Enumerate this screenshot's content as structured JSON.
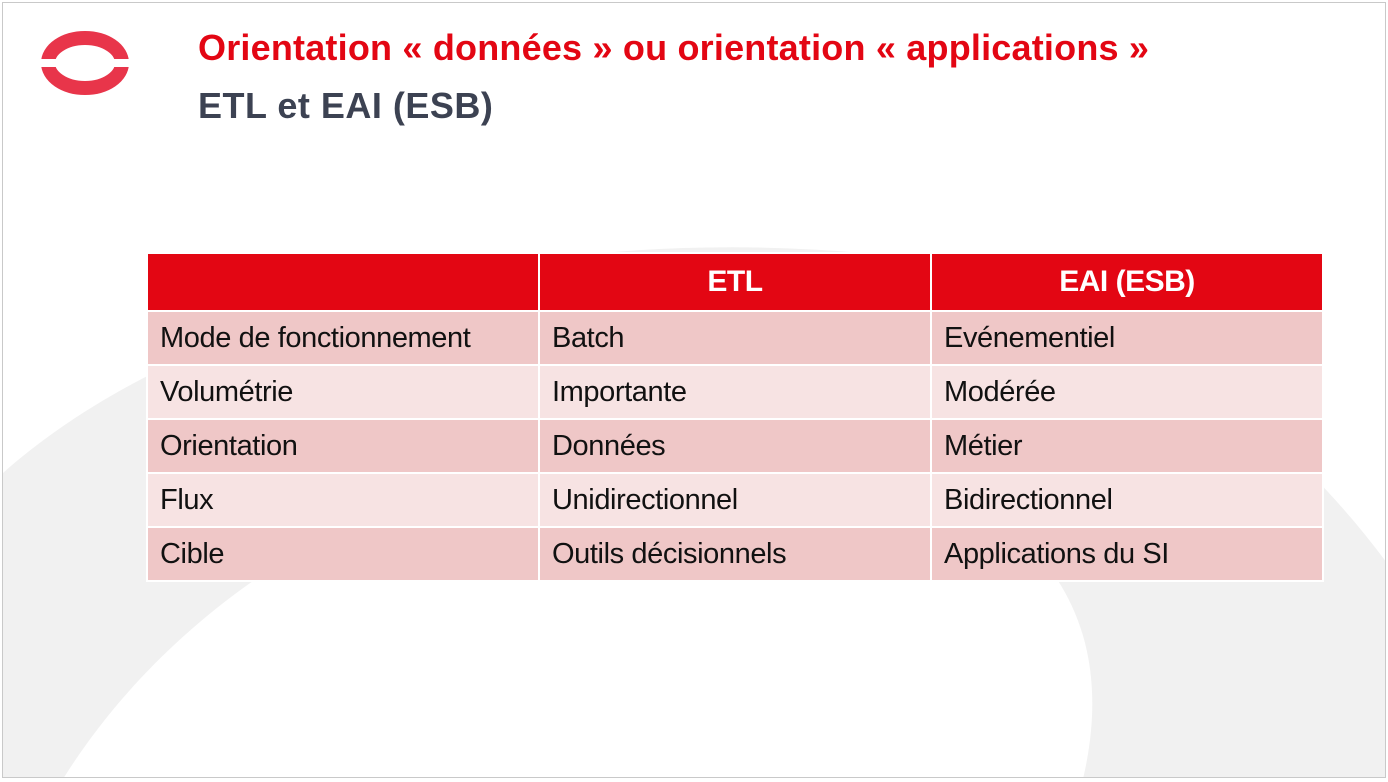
{
  "slide": {
    "title": "Orientation « données » ou orientation « applications »",
    "subtitle": "ETL et EAI (ESB)"
  },
  "table": {
    "headers": [
      "",
      "ETL",
      "EAI (ESB)"
    ],
    "rows": [
      [
        "Mode de fonctionnement",
        "Batch",
        "Evénementiel"
      ],
      [
        "Volumétrie",
        "Importante",
        "Modérée"
      ],
      [
        "Orientation",
        "Données",
        "Métier"
      ],
      [
        "Flux",
        "Unidirectionnel",
        "Bidirectionnel"
      ],
      [
        "Cible",
        "Outils décisionnels",
        "Applications du SI"
      ]
    ]
  },
  "colors": {
    "accent": "#e30613",
    "subtitle": "#3c4252",
    "row_dark": "#efc7c7",
    "row_light": "#f7e3e3"
  },
  "icons": {
    "logo": "ring-logo-icon"
  }
}
